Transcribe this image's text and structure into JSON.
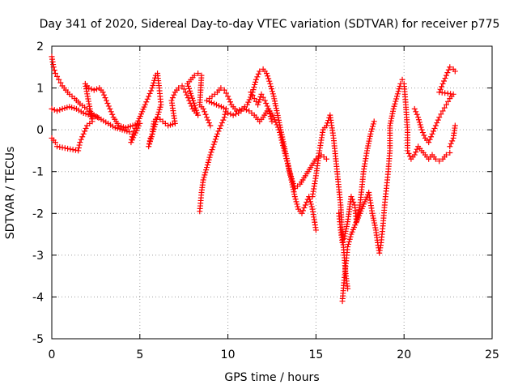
{
  "chart_data": {
    "type": "scatter",
    "title": "Day 341 of 2020, Sidereal Day-to-day VTEC variation (SDTVAR) for receiver p775",
    "xlabel": "GPS time / hours",
    "ylabel": "SDTVAR / TECUs",
    "xlim": [
      0,
      25
    ],
    "ylim": [
      -5,
      2
    ],
    "xticks": [
      "0",
      "5",
      "10",
      "15",
      "20",
      "25"
    ],
    "yticks": [
      "-5",
      "-4",
      "-3",
      "-2",
      "-1",
      "0",
      "1",
      "2"
    ],
    "grid": true,
    "marker": "+",
    "color": "#ff0000",
    "series": [
      {
        "name": "SDTVAR",
        "points": [
          [
            0.0,
            1.75
          ],
          [
            0.1,
            1.5
          ],
          [
            0.2,
            1.35
          ],
          [
            0.4,
            1.2
          ],
          [
            0.6,
            1.05
          ],
          [
            0.8,
            0.95
          ],
          [
            1.0,
            0.85
          ],
          [
            1.3,
            0.75
          ],
          [
            1.6,
            0.62
          ],
          [
            2.0,
            0.5
          ],
          [
            2.4,
            0.35
          ],
          [
            2.8,
            0.25
          ],
          [
            3.2,
            0.15
          ],
          [
            3.6,
            0.05
          ],
          [
            4.0,
            0.0
          ],
          [
            4.4,
            -0.05
          ],
          [
            0.0,
            0.5
          ],
          [
            0.3,
            0.45
          ],
          [
            0.6,
            0.5
          ],
          [
            1.0,
            0.55
          ],
          [
            1.4,
            0.5
          ],
          [
            1.8,
            0.4
          ],
          [
            2.2,
            0.35
          ],
          [
            2.6,
            0.3
          ],
          [
            0.0,
            -0.2
          ],
          [
            0.2,
            -0.3
          ],
          [
            0.3,
            -0.4
          ],
          [
            1.5,
            -0.5
          ],
          [
            1.6,
            -0.3
          ],
          [
            1.8,
            -0.1
          ],
          [
            2.0,
            0.1
          ],
          [
            2.3,
            0.2
          ],
          [
            1.9,
            1.1
          ],
          [
            2.1,
            1.0
          ],
          [
            2.4,
            0.95
          ],
          [
            2.7,
            1.0
          ],
          [
            2.9,
            0.9
          ],
          [
            3.1,
            0.7
          ],
          [
            3.3,
            0.5
          ],
          [
            3.5,
            0.3
          ],
          [
            3.8,
            0.1
          ],
          [
            4.2,
            0.05
          ],
          [
            4.6,
            0.1
          ],
          [
            5.0,
            0.15
          ],
          [
            4.5,
            -0.3
          ],
          [
            4.6,
            -0.1
          ],
          [
            4.8,
            0.1
          ],
          [
            5.3,
            0.6
          ],
          [
            5.5,
            0.8
          ],
          [
            5.7,
            1.0
          ],
          [
            5.9,
            1.3
          ],
          [
            6.0,
            1.35
          ],
          [
            6.1,
            1.0
          ],
          [
            6.2,
            0.6
          ],
          [
            5.5,
            -0.4
          ],
          [
            5.6,
            -0.2
          ],
          [
            5.7,
            -0.1
          ],
          [
            5.8,
            0.2
          ],
          [
            6.0,
            0.3
          ],
          [
            6.3,
            0.2
          ],
          [
            6.6,
            0.1
          ],
          [
            7.0,
            0.15
          ],
          [
            6.8,
            0.7
          ],
          [
            7.0,
            0.9
          ],
          [
            7.2,
            1.0
          ],
          [
            7.4,
            1.05
          ],
          [
            7.6,
            0.9
          ],
          [
            7.8,
            0.7
          ],
          [
            8.0,
            0.5
          ],
          [
            8.3,
            0.35
          ],
          [
            7.7,
            1.1
          ],
          [
            7.9,
            1.2
          ],
          [
            8.1,
            1.3
          ],
          [
            8.3,
            1.35
          ],
          [
            8.5,
            1.3
          ],
          [
            8.4,
            0.6
          ],
          [
            8.6,
            0.5
          ],
          [
            8.8,
            0.3
          ],
          [
            9.0,
            0.1
          ],
          [
            8.4,
            -1.95
          ],
          [
            8.5,
            -1.5
          ],
          [
            8.6,
            -1.2
          ],
          [
            8.8,
            -0.9
          ],
          [
            9.0,
            -0.6
          ],
          [
            9.2,
            -0.35
          ],
          [
            9.4,
            -0.1
          ],
          [
            9.6,
            0.1
          ],
          [
            9.8,
            0.3
          ],
          [
            9.9,
            0.5
          ],
          [
            8.8,
            0.7
          ],
          [
            9.1,
            0.8
          ],
          [
            9.4,
            0.9
          ],
          [
            9.6,
            1.0
          ],
          [
            9.8,
            0.95
          ],
          [
            10.0,
            0.8
          ],
          [
            10.2,
            0.6
          ],
          [
            10.5,
            0.45
          ],
          [
            10.8,
            0.5
          ],
          [
            11.1,
            0.6
          ],
          [
            11.4,
            0.9
          ],
          [
            11.6,
            1.2
          ],
          [
            11.8,
            1.4
          ],
          [
            12.0,
            1.45
          ],
          [
            12.2,
            1.35
          ],
          [
            12.4,
            1.1
          ],
          [
            12.6,
            0.8
          ],
          [
            12.8,
            0.4
          ],
          [
            13.0,
            0.0
          ],
          [
            13.2,
            -0.4
          ],
          [
            13.4,
            -0.8
          ],
          [
            13.6,
            -1.2
          ],
          [
            13.8,
            -1.6
          ],
          [
            14.0,
            -1.9
          ],
          [
            14.2,
            -2.0
          ],
          [
            14.4,
            -1.8
          ],
          [
            14.6,
            -1.6
          ],
          [
            14.8,
            -1.9
          ],
          [
            15.0,
            -2.4
          ],
          [
            10.0,
            0.4
          ],
          [
            10.3,
            0.35
          ],
          [
            10.6,
            0.4
          ],
          [
            10.9,
            0.5
          ],
          [
            11.2,
            0.45
          ],
          [
            11.5,
            0.35
          ],
          [
            11.8,
            0.2
          ],
          [
            12.0,
            0.3
          ],
          [
            12.3,
            0.5
          ],
          [
            12.6,
            0.3
          ],
          [
            12.9,
            0.0
          ],
          [
            13.2,
            -0.5
          ],
          [
            13.5,
            -1.0
          ],
          [
            13.8,
            -1.4
          ],
          [
            14.1,
            -1.3
          ],
          [
            14.4,
            -1.1
          ],
          [
            14.7,
            -0.9
          ],
          [
            15.0,
            -0.7
          ],
          [
            15.3,
            -0.6
          ],
          [
            15.6,
            -0.7
          ],
          [
            11.3,
            0.9
          ],
          [
            11.5,
            0.75
          ],
          [
            11.7,
            0.6
          ],
          [
            11.9,
            0.85
          ],
          [
            12.1,
            0.7
          ],
          [
            12.3,
            0.5
          ],
          [
            12.5,
            0.2
          ],
          [
            14.8,
            -1.6
          ],
          [
            15.0,
            -1.1
          ],
          [
            15.2,
            -0.5
          ],
          [
            15.4,
            0.0
          ],
          [
            15.6,
            0.1
          ],
          [
            15.8,
            0.35
          ],
          [
            16.0,
            -0.2
          ],
          [
            16.2,
            -1.0
          ],
          [
            16.4,
            -1.8
          ],
          [
            16.5,
            -2.5
          ],
          [
            16.6,
            -3.0
          ],
          [
            16.7,
            -3.5
          ],
          [
            16.8,
            -3.8
          ],
          [
            16.3,
            -2.0
          ],
          [
            16.4,
            -2.4
          ],
          [
            16.5,
            -2.7
          ],
          [
            16.6,
            -2.6
          ],
          [
            16.8,
            -2.2
          ],
          [
            17.0,
            -1.6
          ],
          [
            17.2,
            -1.8
          ],
          [
            17.3,
            -2.2
          ],
          [
            17.5,
            -1.8
          ],
          [
            17.7,
            -1.0
          ],
          [
            17.9,
            -0.5
          ],
          [
            18.1,
            -0.1
          ],
          [
            18.3,
            0.2
          ],
          [
            16.5,
            -4.1
          ],
          [
            16.6,
            -3.6
          ],
          [
            16.7,
            -3.2
          ],
          [
            16.8,
            -2.8
          ],
          [
            17.0,
            -2.5
          ],
          [
            18.0,
            -1.5
          ],
          [
            18.2,
            -2.0
          ],
          [
            18.4,
            -2.4
          ],
          [
            18.5,
            -2.7
          ],
          [
            18.6,
            -2.95
          ],
          [
            18.7,
            -2.7
          ],
          [
            18.8,
            -2.3
          ],
          [
            18.9,
            -1.8
          ],
          [
            19.0,
            -1.4
          ],
          [
            19.1,
            -1.0
          ],
          [
            19.2,
            -0.5
          ],
          [
            19.2,
            0.1
          ],
          [
            19.4,
            0.5
          ],
          [
            19.6,
            0.8
          ],
          [
            19.8,
            1.1
          ],
          [
            19.9,
            1.2
          ],
          [
            20.0,
            1.1
          ],
          [
            20.1,
            0.6
          ],
          [
            20.2,
            0.0
          ],
          [
            20.2,
            -0.5
          ],
          [
            20.4,
            -0.7
          ],
          [
            20.6,
            -0.6
          ],
          [
            20.8,
            -0.4
          ],
          [
            21.0,
            -0.5
          ],
          [
            21.2,
            -0.6
          ],
          [
            21.4,
            -0.7
          ],
          [
            21.6,
            -0.6
          ],
          [
            21.8,
            -0.7
          ],
          [
            22.0,
            -0.75
          ],
          [
            22.2,
            -0.7
          ],
          [
            22.4,
            -0.6
          ],
          [
            22.6,
            -0.55
          ],
          [
            20.6,
            0.5
          ],
          [
            20.8,
            0.3
          ],
          [
            21.0,
            0.0
          ],
          [
            21.2,
            -0.2
          ],
          [
            21.4,
            -0.3
          ],
          [
            21.6,
            -0.1
          ],
          [
            21.8,
            0.1
          ],
          [
            22.0,
            0.3
          ],
          [
            22.2,
            0.45
          ],
          [
            22.4,
            0.6
          ],
          [
            22.6,
            0.75
          ],
          [
            22.8,
            0.85
          ],
          [
            22.0,
            0.9
          ],
          [
            22.2,
            1.1
          ],
          [
            22.4,
            1.3
          ],
          [
            22.6,
            1.5
          ],
          [
            22.8,
            1.45
          ],
          [
            22.9,
            1.4
          ],
          [
            22.6,
            -0.4
          ],
          [
            22.8,
            -0.2
          ],
          [
            22.9,
            0.1
          ]
        ]
      }
    ]
  }
}
